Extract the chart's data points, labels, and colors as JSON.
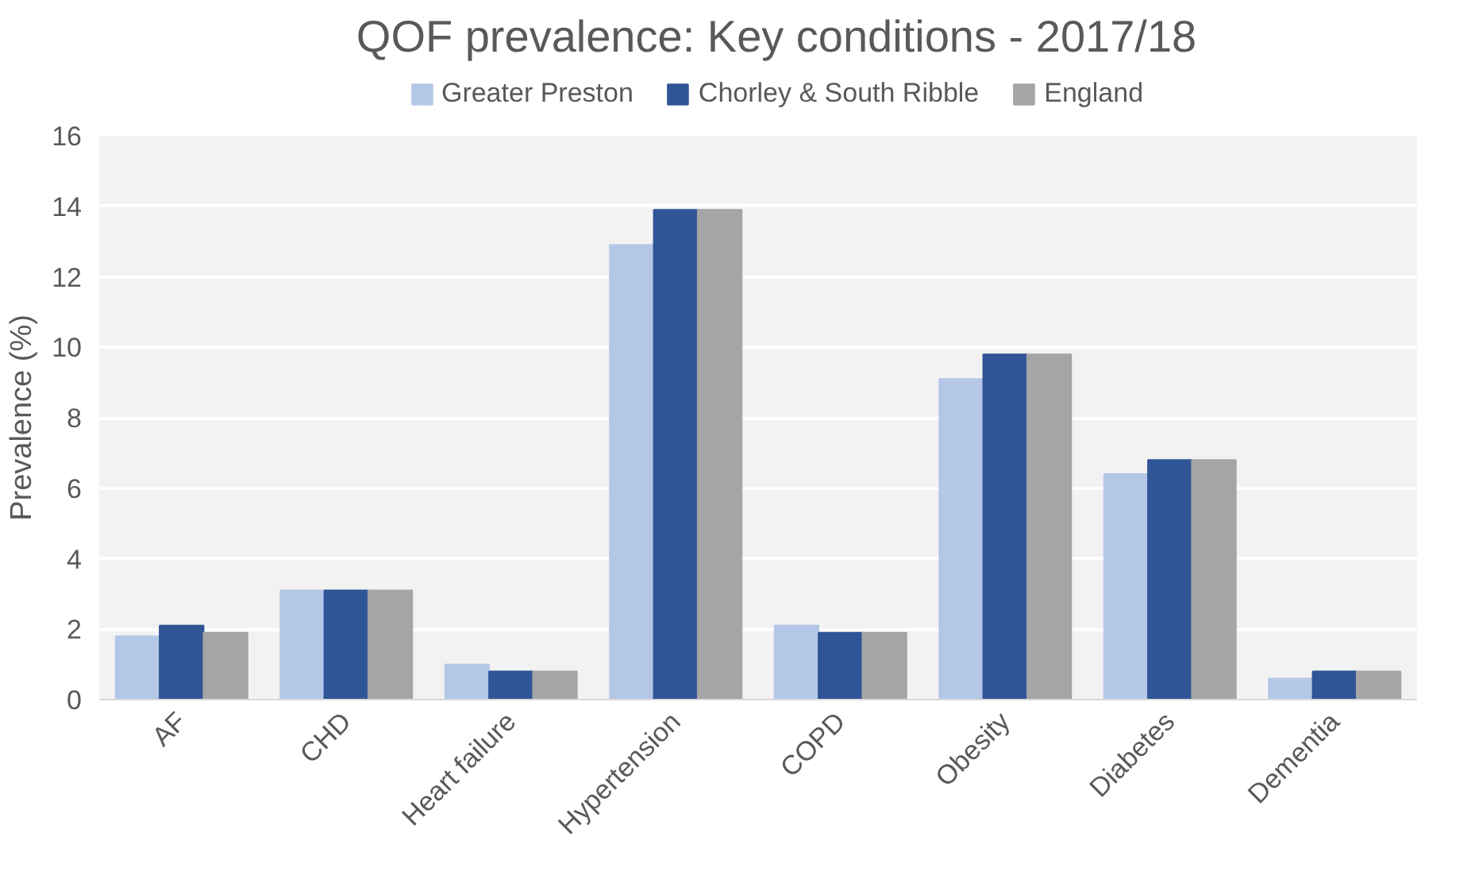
{
  "chart_data": {
    "type": "bar",
    "title": "QOF prevalence: Key conditions - 2017/18",
    "ylabel": "Prevalence (%)",
    "categories": [
      "AF",
      "CHD",
      "Heart failure",
      "Hypertension",
      "COPD",
      "Obesity",
      "Diabetes",
      "Dementia"
    ],
    "series": [
      {
        "name": "Greater Preston",
        "color": "#b4c7e7",
        "values": [
          1.8,
          3.1,
          1.0,
          12.9,
          2.1,
          9.1,
          6.4,
          0.6
        ]
      },
      {
        "name": "Chorley & South Ribble",
        "color": "#2f5597",
        "values": [
          2.1,
          3.1,
          0.8,
          13.9,
          1.9,
          9.8,
          6.8,
          0.8
        ]
      },
      {
        "name": "England",
        "color": "#a5a5a5",
        "values": [
          1.9,
          3.1,
          0.8,
          13.9,
          1.9,
          9.8,
          6.8,
          0.8
        ]
      }
    ],
    "ylim": [
      0,
      16
    ],
    "yticks": [
      0,
      2,
      4,
      6,
      8,
      10,
      12,
      14,
      16
    ],
    "grid": "y",
    "legend": "top"
  }
}
